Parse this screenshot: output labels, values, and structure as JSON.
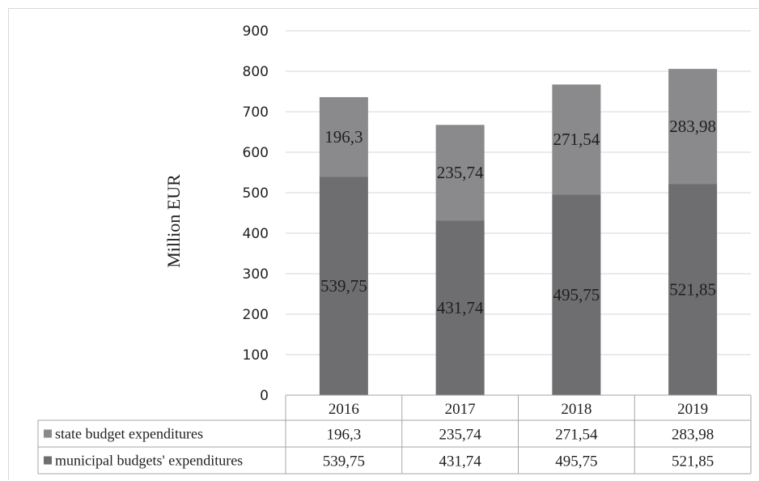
{
  "chart_data": {
    "type": "bar",
    "stacked": true,
    "categories": [
      "2016",
      "2017",
      "2018",
      "2019"
    ],
    "series": [
      {
        "name": "municipal budgets' expenditures",
        "values": [
          539.75,
          431.74,
          495.75,
          521.85
        ],
        "labels": [
          "539,75",
          "431,74",
          "495,75",
          "521,85"
        ],
        "color": "#6e6e71"
      },
      {
        "name": "state budget expenditures",
        "values": [
          196.3,
          235.74,
          271.54,
          283.98
        ],
        "labels": [
          "196,3",
          "235,74",
          "271,54",
          "283,98"
        ],
        "color": "#8a8a8c"
      }
    ],
    "ylabel": "Million EUR",
    "ylim": [
      0,
      900
    ],
    "yticks": [
      0,
      100,
      200,
      300,
      400,
      500,
      600,
      700,
      800,
      900
    ],
    "grid": true,
    "data_table": true,
    "table_rows": [
      {
        "name": "state budget expenditures",
        "values": [
          "196,3",
          "235,74",
          "271,54",
          "283,98"
        ],
        "color": "#8a8a8c"
      },
      {
        "name": "municipal budgets' expenditures",
        "values": [
          "539,75",
          "431,74",
          "495,75",
          "521,85"
        ],
        "color": "#6e6e71"
      }
    ]
  }
}
